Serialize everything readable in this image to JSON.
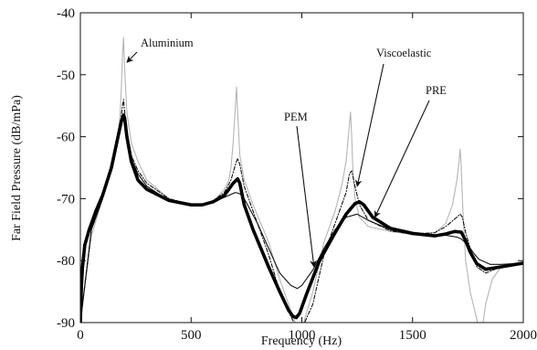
{
  "chart_data": {
    "type": "line",
    "xlabel": "Frequency (Hz)",
    "ylabel": "Far Field Pressure (dB/mPa)",
    "xlim": [
      0,
      2000
    ],
    "ylim": [
      -90,
      -40
    ],
    "xticks": [
      0,
      500,
      1000,
      1500,
      2000
    ],
    "yticks": [
      -90,
      -80,
      -70,
      -60,
      -50,
      -40
    ],
    "grid": false,
    "legend": "none",
    "annotations": [
      {
        "text": "Aluminium",
        "series": "Aluminium",
        "arrow_to": [
          210,
          -48
        ]
      },
      {
        "text": "Viscoelastic",
        "series": "Viscoelastic",
        "arrow_to": [
          1250,
          -68
        ]
      },
      {
        "text": "PEM",
        "series": "PEM",
        "arrow_to": [
          1055,
          -81
        ]
      },
      {
        "text": "PRE",
        "series": "PRE",
        "arrow_to": [
          1330,
          -73
        ]
      }
    ],
    "series": [
      {
        "name": "Aluminium",
        "color": "#b5b5b5",
        "style": "thin-solid",
        "x": [
          0,
          50,
          100,
          150,
          170,
          180,
          185,
          190,
          195,
          200,
          210,
          230,
          260,
          300,
          400,
          500,
          550,
          600,
          650,
          670,
          680,
          690,
          700,
          705,
          710,
          720,
          740,
          780,
          850,
          900,
          950,
          980,
          1000,
          1050,
          1100,
          1150,
          1180,
          1200,
          1210,
          1215,
          1220,
          1225,
          1230,
          1240,
          1260,
          1300,
          1400,
          1500,
          1600,
          1650,
          1680,
          1700,
          1710,
          1715,
          1720,
          1725,
          1730,
          1740,
          1760,
          1780,
          1800,
          1810,
          1830,
          1860,
          1900,
          2000
        ],
        "y": [
          -90,
          -76,
          -70,
          -64,
          -60,
          -56,
          -52,
          -47,
          -44,
          -49,
          -56,
          -61,
          -64,
          -67,
          -70,
          -71,
          -71,
          -70.5,
          -68.5,
          -67,
          -65,
          -61,
          -55,
          -52,
          -56,
          -63,
          -67,
          -71,
          -77,
          -83,
          -88,
          -91,
          -91,
          -85,
          -77,
          -72,
          -68,
          -64,
          -60,
          -58,
          -56,
          -60,
          -65,
          -70,
          -73,
          -74.5,
          -75.3,
          -75.8,
          -75.5,
          -74,
          -71,
          -67,
          -64,
          -62,
          -65,
          -70,
          -74,
          -80,
          -85,
          -88,
          -91,
          -92,
          -87,
          -83,
          -81,
          -80.5
        ]
      },
      {
        "name": "Viscoelastic",
        "color": "#111111",
        "style": "dash-dot",
        "x": [
          0,
          50,
          100,
          150,
          180,
          190,
          195,
          200,
          210,
          230,
          260,
          300,
          400,
          500,
          550,
          600,
          650,
          680,
          700,
          710,
          720,
          740,
          780,
          850,
          900,
          950,
          980,
          1000,
          1050,
          1100,
          1150,
          1200,
          1215,
          1225,
          1240,
          1260,
          1300,
          1400,
          1500,
          1600,
          1650,
          1700,
          1715,
          1725,
          1740,
          1760,
          1790,
          1830,
          1900,
          2000
        ],
        "y": [
          -90,
          -75,
          -70,
          -64,
          -58,
          -55,
          -54,
          -56,
          -59,
          -63,
          -65.5,
          -67.5,
          -70,
          -71,
          -71,
          -70.3,
          -69,
          -67,
          -64.5,
          -63.5,
          -64.5,
          -68,
          -72,
          -79,
          -85,
          -89,
          -91,
          -91,
          -87,
          -79,
          -74,
          -69,
          -66,
          -65.5,
          -68,
          -71,
          -73.5,
          -75.2,
          -75.7,
          -75.5,
          -74.5,
          -73,
          -72.5,
          -73,
          -75.5,
          -78,
          -81,
          -82,
          -81,
          -80.5
        ]
      },
      {
        "name": "PEM",
        "color": "#111111",
        "style": "thin-solid",
        "x": [
          0,
          50,
          100,
          150,
          180,
          190,
          195,
          200,
          210,
          230,
          260,
          300,
          400,
          500,
          550,
          600,
          650,
          700,
          720,
          740,
          800,
          850,
          900,
          950,
          980,
          1000,
          1050,
          1100,
          1150,
          1200,
          1250,
          1300,
          1400,
          1500,
          1600,
          1650,
          1700,
          1720,
          1750,
          1780,
          1800,
          1850,
          1900,
          2000
        ],
        "y": [
          -90,
          -75,
          -70,
          -64,
          -59,
          -57,
          -56.5,
          -57.5,
          -60,
          -63.5,
          -66,
          -68,
          -70.3,
          -71,
          -71,
          -70.5,
          -69.8,
          -69,
          -69.2,
          -70,
          -74,
          -78,
          -82,
          -84,
          -84.5,
          -84,
          -81.5,
          -78,
          -75,
          -73,
          -72.5,
          -73.5,
          -75,
          -75.8,
          -76,
          -75.9,
          -76.2,
          -76.5,
          -77.5,
          -79,
          -79.8,
          -80.6,
          -80.6,
          -80.4
        ]
      },
      {
        "name": "PRE",
        "color": "#000000",
        "style": "thick-solid",
        "x": [
          0,
          5,
          10,
          20,
          40,
          70,
          100,
          140,
          170,
          185,
          195,
          200,
          210,
          230,
          260,
          300,
          400,
          500,
          550,
          600,
          650,
          690,
          710,
          720,
          740,
          780,
          850,
          900,
          940,
          960,
          975,
          990,
          1020,
          1080,
          1150,
          1200,
          1240,
          1260,
          1280,
          1320,
          1400,
          1500,
          1600,
          1650,
          1690,
          1720,
          1740,
          1760,
          1790,
          1830,
          1900,
          2000
        ],
        "y": [
          -90,
          -84,
          -81,
          -77.5,
          -75,
          -72,
          -69.5,
          -65,
          -60,
          -57.5,
          -56.5,
          -57,
          -60,
          -64,
          -67,
          -68.5,
          -70.3,
          -71,
          -71,
          -70.5,
          -69.5,
          -67.5,
          -66.8,
          -67.5,
          -71,
          -75,
          -81,
          -85,
          -88,
          -89,
          -89.2,
          -88.5,
          -85.5,
          -80,
          -75.5,
          -72.5,
          -70.8,
          -70.5,
          -71,
          -73,
          -74.8,
          -75.6,
          -76,
          -75.7,
          -75.3,
          -75.4,
          -76.8,
          -78.6,
          -80.5,
          -81.4,
          -81,
          -80.4
        ]
      }
    ]
  }
}
